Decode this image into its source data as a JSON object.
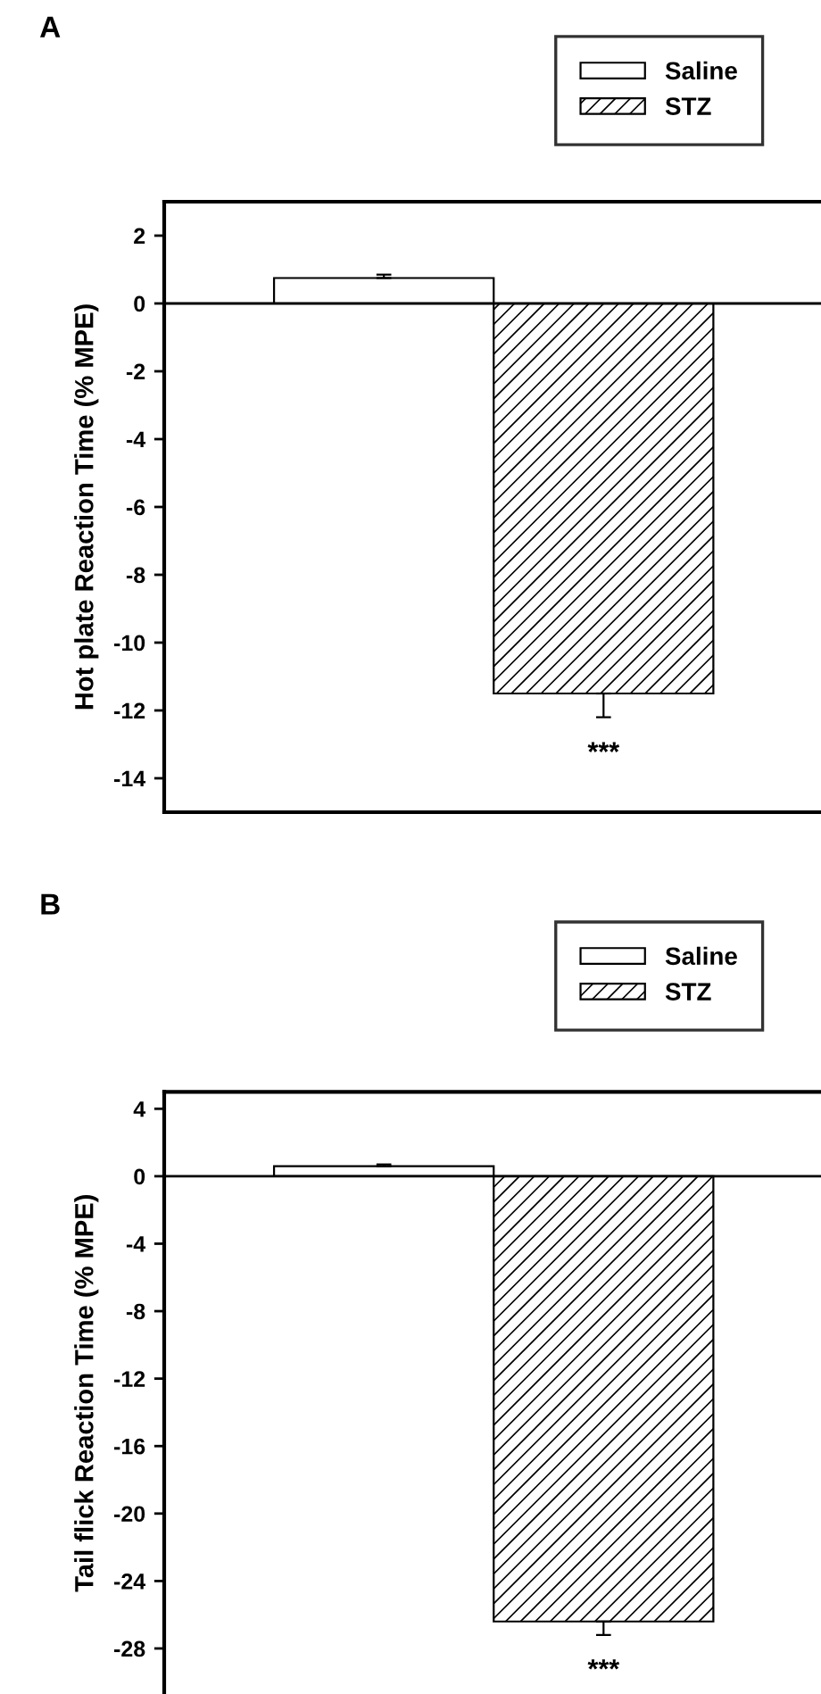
{
  "chart_data": [
    {
      "type": "bar",
      "title": "A",
      "ylabel": "Hot plate Reaction Time (% MPE)",
      "categories": [
        null,
        null
      ],
      "series": [
        {
          "name": "Saline",
          "color": "#ffffff",
          "values": [
            0.75,
            null
          ],
          "errors": [
            0.1,
            null
          ]
        },
        {
          "name": "STZ",
          "color": "#000000",
          "values": [
            null,
            -11.5
          ],
          "errors": [
            null,
            0.7
          ]
        }
      ],
      "ylim": [
        -15,
        3
      ],
      "yticks": [
        -14,
        -12,
        -10,
        -8,
        -6,
        -4,
        -2,
        0,
        2
      ],
      "ref_lines": [
        {
          "axis": "y",
          "value": 0
        }
      ],
      "annotations": [
        "***"
      ],
      "legend": "top right",
      "grid": false
    },
    {
      "type": "bar",
      "title": "B",
      "ylabel": "Tail flick Reaction Time (% MPE)",
      "categories": [
        null,
        null
      ],
      "series": [
        {
          "name": "Saline",
          "color": "#ffffff",
          "values": [
            0.6,
            null
          ],
          "errors": [
            0.1,
            null
          ]
        },
        {
          "name": "STZ",
          "color": "#000000",
          "values": [
            null,
            -26.4
          ],
          "errors": [
            null,
            0.8
          ]
        }
      ],
      "ylim": [
        -30.7,
        5
      ],
      "yticks": [
        -28,
        -24,
        -20,
        -16,
        -12,
        -8,
        -4,
        0,
        4
      ],
      "ref_lines": [
        {
          "axis": "y",
          "value": 0
        }
      ],
      "annotations": [
        "***"
      ],
      "legend": "top right",
      "grid": false
    }
  ]
}
